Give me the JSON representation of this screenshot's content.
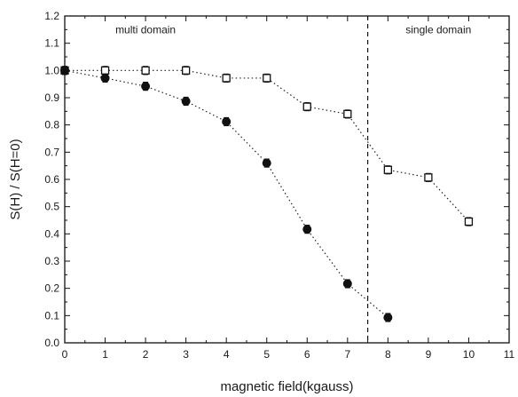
{
  "chart_data": {
    "type": "scatter",
    "xlabel": "magnetic field(kgauss)",
    "ylabel": "S(H) / S(H=0)",
    "xlim": [
      0,
      11
    ],
    "ylim": [
      0.0,
      1.2
    ],
    "xticks": [
      "0",
      "1",
      "2",
      "3",
      "4",
      "5",
      "6",
      "7",
      "8",
      "9",
      "10",
      "11"
    ],
    "yticks": [
      "0.0",
      "0.1",
      "0.2",
      "0.3",
      "0.4",
      "0.5",
      "0.6",
      "0.7",
      "0.8",
      "0.9",
      "1.0",
      "1.1",
      "1.2"
    ],
    "grid": false,
    "legend": "none",
    "series": [
      {
        "marker": "open-square",
        "line": "dotted",
        "x": [
          0,
          1,
          2,
          3,
          4,
          5,
          6,
          7,
          8,
          9,
          10
        ],
        "y": [
          1.0,
          1.0,
          1.0,
          1.0,
          0.972,
          0.972,
          0.867,
          0.84,
          0.635,
          0.607,
          0.445
        ],
        "err": [
          0.015,
          0.015,
          0.015,
          0.015,
          0.015,
          0.015,
          0.015,
          0.015,
          0.015,
          0.015,
          0.015
        ]
      },
      {
        "marker": "filled-circle",
        "line": "dotted",
        "x": [
          0,
          1,
          2,
          3,
          4,
          5,
          6,
          7,
          8
        ],
        "y": [
          1.0,
          0.972,
          0.942,
          0.887,
          0.812,
          0.66,
          0.417,
          0.217,
          0.093
        ],
        "err": [
          0.015,
          0.015,
          0.015,
          0.015,
          0.015,
          0.015,
          0.015,
          0.015,
          0.015
        ]
      }
    ],
    "divider": {
      "x": 7.5,
      "style": "dashed"
    },
    "annotations": [
      {
        "text": "multi domain",
        "x": 2.0,
        "y": 1.15
      },
      {
        "text": "single domain",
        "x": 9.25,
        "y": 1.15
      }
    ]
  }
}
